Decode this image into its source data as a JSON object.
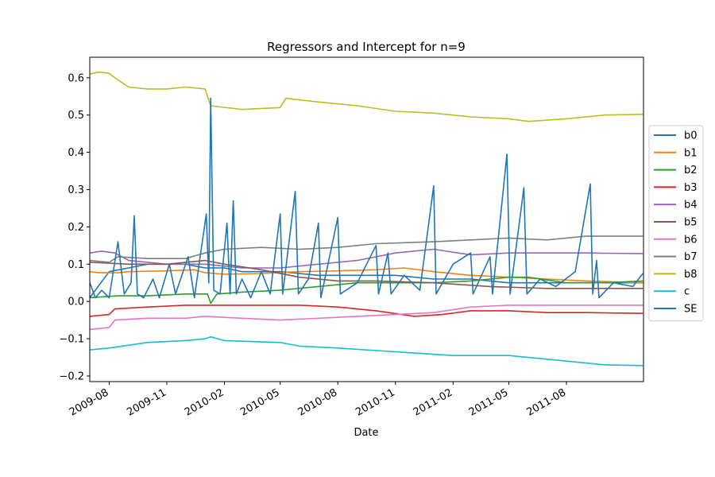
{
  "chart_data": {
    "type": "line",
    "title": "Regressors and Intercept for n=9",
    "xlabel": "Date",
    "ylabel": "",
    "xlim": [
      "2009-07-01",
      "2011-12-02"
    ],
    "ylim": [
      -0.215,
      0.655
    ],
    "grid": false,
    "legend_position": "right, outside plot",
    "x_ticks": [
      {
        "date": "2009-08-01",
        "label": "2009-08"
      },
      {
        "date": "2009-11-01",
        "label": "2009-11"
      },
      {
        "date": "2010-02-01",
        "label": "2010-02"
      },
      {
        "date": "2010-05-01",
        "label": "2010-05"
      },
      {
        "date": "2010-08-01",
        "label": "2010-08"
      },
      {
        "date": "2010-11-01",
        "label": "2010-11"
      },
      {
        "date": "2011-02-01",
        "label": "2011-02"
      },
      {
        "date": "2011-05-01",
        "label": "2011-05"
      },
      {
        "date": "2011-08-01",
        "label": "2011-08"
      }
    ],
    "y_ticks": [
      {
        "value": 0.6,
        "label": "0.6"
      },
      {
        "value": 0.5,
        "label": "0.5"
      },
      {
        "value": 0.4,
        "label": "0.4"
      },
      {
        "value": 0.3,
        "label": "0.3"
      },
      {
        "value": 0.2,
        "label": "0.2"
      },
      {
        "value": 0.1,
        "label": "0.1"
      },
      {
        "value": 0.0,
        "label": "0.0"
      },
      {
        "value": -0.1,
        "label": "−0.1"
      },
      {
        "value": -0.2,
        "label": "−0.2"
      }
    ],
    "series": [
      {
        "name": "b0",
        "color": "#1f77b4",
        "points": [
          [
            "2009-07-01",
            0.01
          ],
          [
            "2009-08-01",
            0.08
          ],
          [
            "2009-09-01",
            0.09
          ],
          [
            "2009-10-01",
            0.1
          ],
          [
            "2009-11-01",
            0.1
          ],
          [
            "2009-12-01",
            0.1
          ],
          [
            "2010-01-01",
            0.09
          ],
          [
            "2010-02-01",
            0.09
          ],
          [
            "2010-03-01",
            0.08
          ],
          [
            "2010-05-01",
            0.08
          ],
          [
            "2010-07-01",
            0.07
          ],
          [
            "2010-09-01",
            0.07
          ],
          [
            "2010-11-01",
            0.07
          ],
          [
            "2011-01-01",
            0.06
          ],
          [
            "2011-03-01",
            0.06
          ],
          [
            "2011-05-01",
            0.05
          ],
          [
            "2011-07-01",
            0.05
          ],
          [
            "2011-09-01",
            0.05
          ],
          [
            "2011-12-01",
            0.05
          ]
        ]
      },
      {
        "name": "b1",
        "color": "#ff7f0e",
        "points": [
          [
            "2009-07-01",
            0.08
          ],
          [
            "2009-07-15",
            0.077
          ],
          [
            "2009-08-15",
            0.077
          ],
          [
            "2009-09-01",
            0.08
          ],
          [
            "2009-11-01",
            0.082
          ],
          [
            "2009-12-15",
            0.085
          ],
          [
            "2010-01-01",
            0.077
          ],
          [
            "2010-02-01",
            0.073
          ],
          [
            "2010-04-01",
            0.075
          ],
          [
            "2010-06-01",
            0.08
          ],
          [
            "2010-08-01",
            0.082
          ],
          [
            "2010-10-01",
            0.085
          ],
          [
            "2010-11-15",
            0.09
          ],
          [
            "2011-01-01",
            0.08
          ],
          [
            "2011-03-01",
            0.07
          ],
          [
            "2011-05-01",
            0.065
          ],
          [
            "2011-07-01",
            0.06
          ],
          [
            "2011-09-01",
            0.055
          ],
          [
            "2011-12-01",
            0.05
          ]
        ]
      },
      {
        "name": "b2",
        "color": "#2ca02c",
        "points": [
          [
            "2009-07-01",
            0.01
          ],
          [
            "2009-08-15",
            0.015
          ],
          [
            "2009-10-01",
            0.015
          ],
          [
            "2009-12-01",
            0.02
          ],
          [
            "2010-01-05",
            0.02
          ],
          [
            "2010-01-10",
            -0.005
          ],
          [
            "2010-01-20",
            0.02
          ],
          [
            "2010-03-01",
            0.025
          ],
          [
            "2010-05-01",
            0.03
          ],
          [
            "2010-07-01",
            0.04
          ],
          [
            "2010-09-01",
            0.05
          ],
          [
            "2010-11-01",
            0.05
          ],
          [
            "2011-01-01",
            0.05
          ],
          [
            "2011-03-01",
            0.055
          ],
          [
            "2011-05-01",
            0.065
          ],
          [
            "2011-06-01",
            0.065
          ],
          [
            "2011-08-01",
            0.05
          ],
          [
            "2011-10-01",
            0.05
          ],
          [
            "2011-12-01",
            0.055
          ]
        ]
      },
      {
        "name": "b3",
        "color": "#d62728",
        "points": [
          [
            "2009-07-01",
            -0.04
          ],
          [
            "2009-08-01",
            -0.035
          ],
          [
            "2009-08-10",
            -0.02
          ],
          [
            "2009-10-01",
            -0.015
          ],
          [
            "2009-12-01",
            -0.01
          ],
          [
            "2010-02-01",
            -0.01
          ],
          [
            "2010-04-01",
            -0.01
          ],
          [
            "2010-06-01",
            -0.01
          ],
          [
            "2010-08-01",
            -0.015
          ],
          [
            "2010-10-01",
            -0.025
          ],
          [
            "2010-12-01",
            -0.04
          ],
          [
            "2011-01-15",
            -0.035
          ],
          [
            "2011-03-01",
            -0.025
          ],
          [
            "2011-05-01",
            -0.025
          ],
          [
            "2011-07-01",
            -0.03
          ],
          [
            "2011-09-01",
            -0.03
          ],
          [
            "2011-12-01",
            -0.032
          ]
        ]
      },
      {
        "name": "b4",
        "color": "#9467bd",
        "points": [
          [
            "2009-07-01",
            0.13
          ],
          [
            "2009-07-20",
            0.135
          ],
          [
            "2009-08-10",
            0.13
          ],
          [
            "2009-09-01",
            0.11
          ],
          [
            "2009-11-01",
            0.1
          ],
          [
            "2010-01-01",
            0.1
          ],
          [
            "2010-03-01",
            0.09
          ],
          [
            "2010-05-01",
            0.09
          ],
          [
            "2010-07-01",
            0.1
          ],
          [
            "2010-09-01",
            0.11
          ],
          [
            "2010-11-01",
            0.13
          ],
          [
            "2011-01-01",
            0.14
          ],
          [
            "2011-03-01",
            0.125
          ],
          [
            "2011-05-01",
            0.13
          ],
          [
            "2011-07-01",
            0.13
          ],
          [
            "2011-09-01",
            0.13
          ],
          [
            "2011-12-01",
            0.128
          ]
        ]
      },
      {
        "name": "b5",
        "color": "#8c564b",
        "points": [
          [
            "2009-07-01",
            0.105
          ],
          [
            "2009-09-01",
            0.1
          ],
          [
            "2009-11-01",
            0.1
          ],
          [
            "2010-01-01",
            0.11
          ],
          [
            "2010-02-01",
            0.1
          ],
          [
            "2010-04-01",
            0.085
          ],
          [
            "2010-06-01",
            0.065
          ],
          [
            "2010-08-01",
            0.055
          ],
          [
            "2010-10-01",
            0.055
          ],
          [
            "2011-01-01",
            0.05
          ],
          [
            "2011-04-01",
            0.04
          ],
          [
            "2011-07-01",
            0.035
          ],
          [
            "2011-10-01",
            0.035
          ],
          [
            "2011-12-01",
            0.035
          ]
        ]
      },
      {
        "name": "b6",
        "color": "#e377c2",
        "points": [
          [
            "2009-07-01",
            -0.075
          ],
          [
            "2009-08-01",
            -0.07
          ],
          [
            "2009-08-10",
            -0.05
          ],
          [
            "2009-10-01",
            -0.045
          ],
          [
            "2009-12-01",
            -0.045
          ],
          [
            "2010-01-01",
            -0.04
          ],
          [
            "2010-03-01",
            -0.045
          ],
          [
            "2010-05-01",
            -0.05
          ],
          [
            "2010-07-01",
            -0.045
          ],
          [
            "2010-09-01",
            -0.04
          ],
          [
            "2010-11-01",
            -0.035
          ],
          [
            "2011-01-01",
            -0.03
          ],
          [
            "2011-03-01",
            -0.015
          ],
          [
            "2011-05-01",
            -0.01
          ],
          [
            "2011-08-01",
            -0.01
          ],
          [
            "2011-12-01",
            -0.01
          ]
        ]
      },
      {
        "name": "b7",
        "color": "#7f7f7f",
        "points": [
          [
            "2009-07-01",
            0.11
          ],
          [
            "2009-08-01",
            0.105
          ],
          [
            "2009-08-15",
            0.12
          ],
          [
            "2009-10-01",
            0.115
          ],
          [
            "2009-12-01",
            0.115
          ],
          [
            "2010-01-01",
            0.13
          ],
          [
            "2010-02-01",
            0.14
          ],
          [
            "2010-04-01",
            0.145
          ],
          [
            "2010-06-01",
            0.14
          ],
          [
            "2010-08-01",
            0.145
          ],
          [
            "2010-10-01",
            0.155
          ],
          [
            "2011-01-01",
            0.16
          ],
          [
            "2011-03-01",
            0.165
          ],
          [
            "2011-05-01",
            0.17
          ],
          [
            "2011-07-01",
            0.165
          ],
          [
            "2011-09-01",
            0.175
          ],
          [
            "2011-12-01",
            0.175
          ]
        ]
      },
      {
        "name": "b8",
        "color": "#bcbd22",
        "points": [
          [
            "2009-07-01",
            0.61
          ],
          [
            "2009-07-15",
            0.615
          ],
          [
            "2009-08-01",
            0.612
          ],
          [
            "2009-08-10",
            0.6
          ],
          [
            "2009-09-01",
            0.575
          ],
          [
            "2009-10-01",
            0.57
          ],
          [
            "2009-11-01",
            0.57
          ],
          [
            "2009-12-01",
            0.575
          ],
          [
            "2010-01-01",
            0.57
          ],
          [
            "2010-01-10",
            0.525
          ],
          [
            "2010-03-01",
            0.515
          ],
          [
            "2010-05-01",
            0.52
          ],
          [
            "2010-05-10",
            0.545
          ],
          [
            "2010-07-01",
            0.535
          ],
          [
            "2010-09-01",
            0.525
          ],
          [
            "2010-11-01",
            0.51
          ],
          [
            "2011-01-01",
            0.505
          ],
          [
            "2011-03-01",
            0.495
          ],
          [
            "2011-05-01",
            0.49
          ],
          [
            "2011-06-01",
            0.483
          ],
          [
            "2011-08-01",
            0.49
          ],
          [
            "2011-10-01",
            0.5
          ],
          [
            "2011-12-01",
            0.502
          ]
        ]
      },
      {
        "name": "c",
        "color": "#17becf",
        "points": [
          [
            "2009-07-01",
            -0.13
          ],
          [
            "2009-08-01",
            -0.125
          ],
          [
            "2009-10-01",
            -0.11
          ],
          [
            "2009-12-01",
            -0.105
          ],
          [
            "2010-01-01",
            -0.1
          ],
          [
            "2010-01-10",
            -0.095
          ],
          [
            "2010-02-01",
            -0.105
          ],
          [
            "2010-05-01",
            -0.11
          ],
          [
            "2010-06-01",
            -0.12
          ],
          [
            "2010-08-01",
            -0.125
          ],
          [
            "2010-11-01",
            -0.135
          ],
          [
            "2011-02-01",
            -0.145
          ],
          [
            "2011-05-01",
            -0.145
          ],
          [
            "2011-08-01",
            -0.16
          ],
          [
            "2011-10-01",
            -0.17
          ],
          [
            "2011-12-01",
            -0.172
          ]
        ]
      },
      {
        "name": "SE",
        "color": "#1f77b4",
        "points": [
          [
            "2009-07-01",
            0.05
          ],
          [
            "2009-07-10",
            0.01
          ],
          [
            "2009-07-20",
            0.03
          ],
          [
            "2009-08-01",
            0.01
          ],
          [
            "2009-08-15",
            0.16
          ],
          [
            "2009-08-25",
            0.02
          ],
          [
            "2009-09-05",
            0.05
          ],
          [
            "2009-09-10",
            0.23
          ],
          [
            "2009-09-15",
            0.02
          ],
          [
            "2009-09-25",
            0.01
          ],
          [
            "2009-10-10",
            0.06
          ],
          [
            "2009-10-20",
            0.01
          ],
          [
            "2009-11-05",
            0.1
          ],
          [
            "2009-11-15",
            0.02
          ],
          [
            "2009-12-05",
            0.12
          ],
          [
            "2009-12-15",
            0.01
          ],
          [
            "2009-12-25",
            0.13
          ],
          [
            "2010-01-03",
            0.235
          ],
          [
            "2010-01-07",
            0.05
          ],
          [
            "2010-01-10",
            0.545
          ],
          [
            "2010-01-15",
            0.03
          ],
          [
            "2010-01-25",
            0.02
          ],
          [
            "2010-02-05",
            0.21
          ],
          [
            "2010-02-10",
            0.02
          ],
          [
            "2010-02-15",
            0.27
          ],
          [
            "2010-02-20",
            0.02
          ],
          [
            "2010-03-01",
            0.06
          ],
          [
            "2010-03-15",
            0.01
          ],
          [
            "2010-04-01",
            0.08
          ],
          [
            "2010-04-15",
            0.02
          ],
          [
            "2010-05-01",
            0.235
          ],
          [
            "2010-05-05",
            0.02
          ],
          [
            "2010-05-25",
            0.295
          ],
          [
            "2010-05-30",
            0.02
          ],
          [
            "2010-06-15",
            0.06
          ],
          [
            "2010-07-01",
            0.21
          ],
          [
            "2010-07-05",
            0.01
          ],
          [
            "2010-08-01",
            0.225
          ],
          [
            "2010-08-05",
            0.02
          ],
          [
            "2010-09-01",
            0.05
          ],
          [
            "2010-10-01",
            0.15
          ],
          [
            "2010-10-05",
            0.02
          ],
          [
            "2010-10-20",
            0.13
          ],
          [
            "2010-10-25",
            0.02
          ],
          [
            "2010-11-15",
            0.07
          ],
          [
            "2010-12-10",
            0.03
          ],
          [
            "2011-01-01",
            0.31
          ],
          [
            "2011-01-05",
            0.02
          ],
          [
            "2011-02-01",
            0.1
          ],
          [
            "2011-03-01",
            0.13
          ],
          [
            "2011-03-05",
            0.02
          ],
          [
            "2011-04-01",
            0.12
          ],
          [
            "2011-04-05",
            0.02
          ],
          [
            "2011-04-28",
            0.395
          ],
          [
            "2011-05-03",
            0.02
          ],
          [
            "2011-05-25",
            0.305
          ],
          [
            "2011-05-30",
            0.02
          ],
          [
            "2011-06-20",
            0.06
          ],
          [
            "2011-07-15",
            0.04
          ],
          [
            "2011-08-15",
            0.08
          ],
          [
            "2011-09-08",
            0.315
          ],
          [
            "2011-09-12",
            0.02
          ],
          [
            "2011-09-18",
            0.11
          ],
          [
            "2011-09-22",
            0.01
          ],
          [
            "2011-10-15",
            0.05
          ],
          [
            "2011-11-15",
            0.04
          ],
          [
            "2011-12-01",
            0.075
          ]
        ]
      }
    ]
  }
}
